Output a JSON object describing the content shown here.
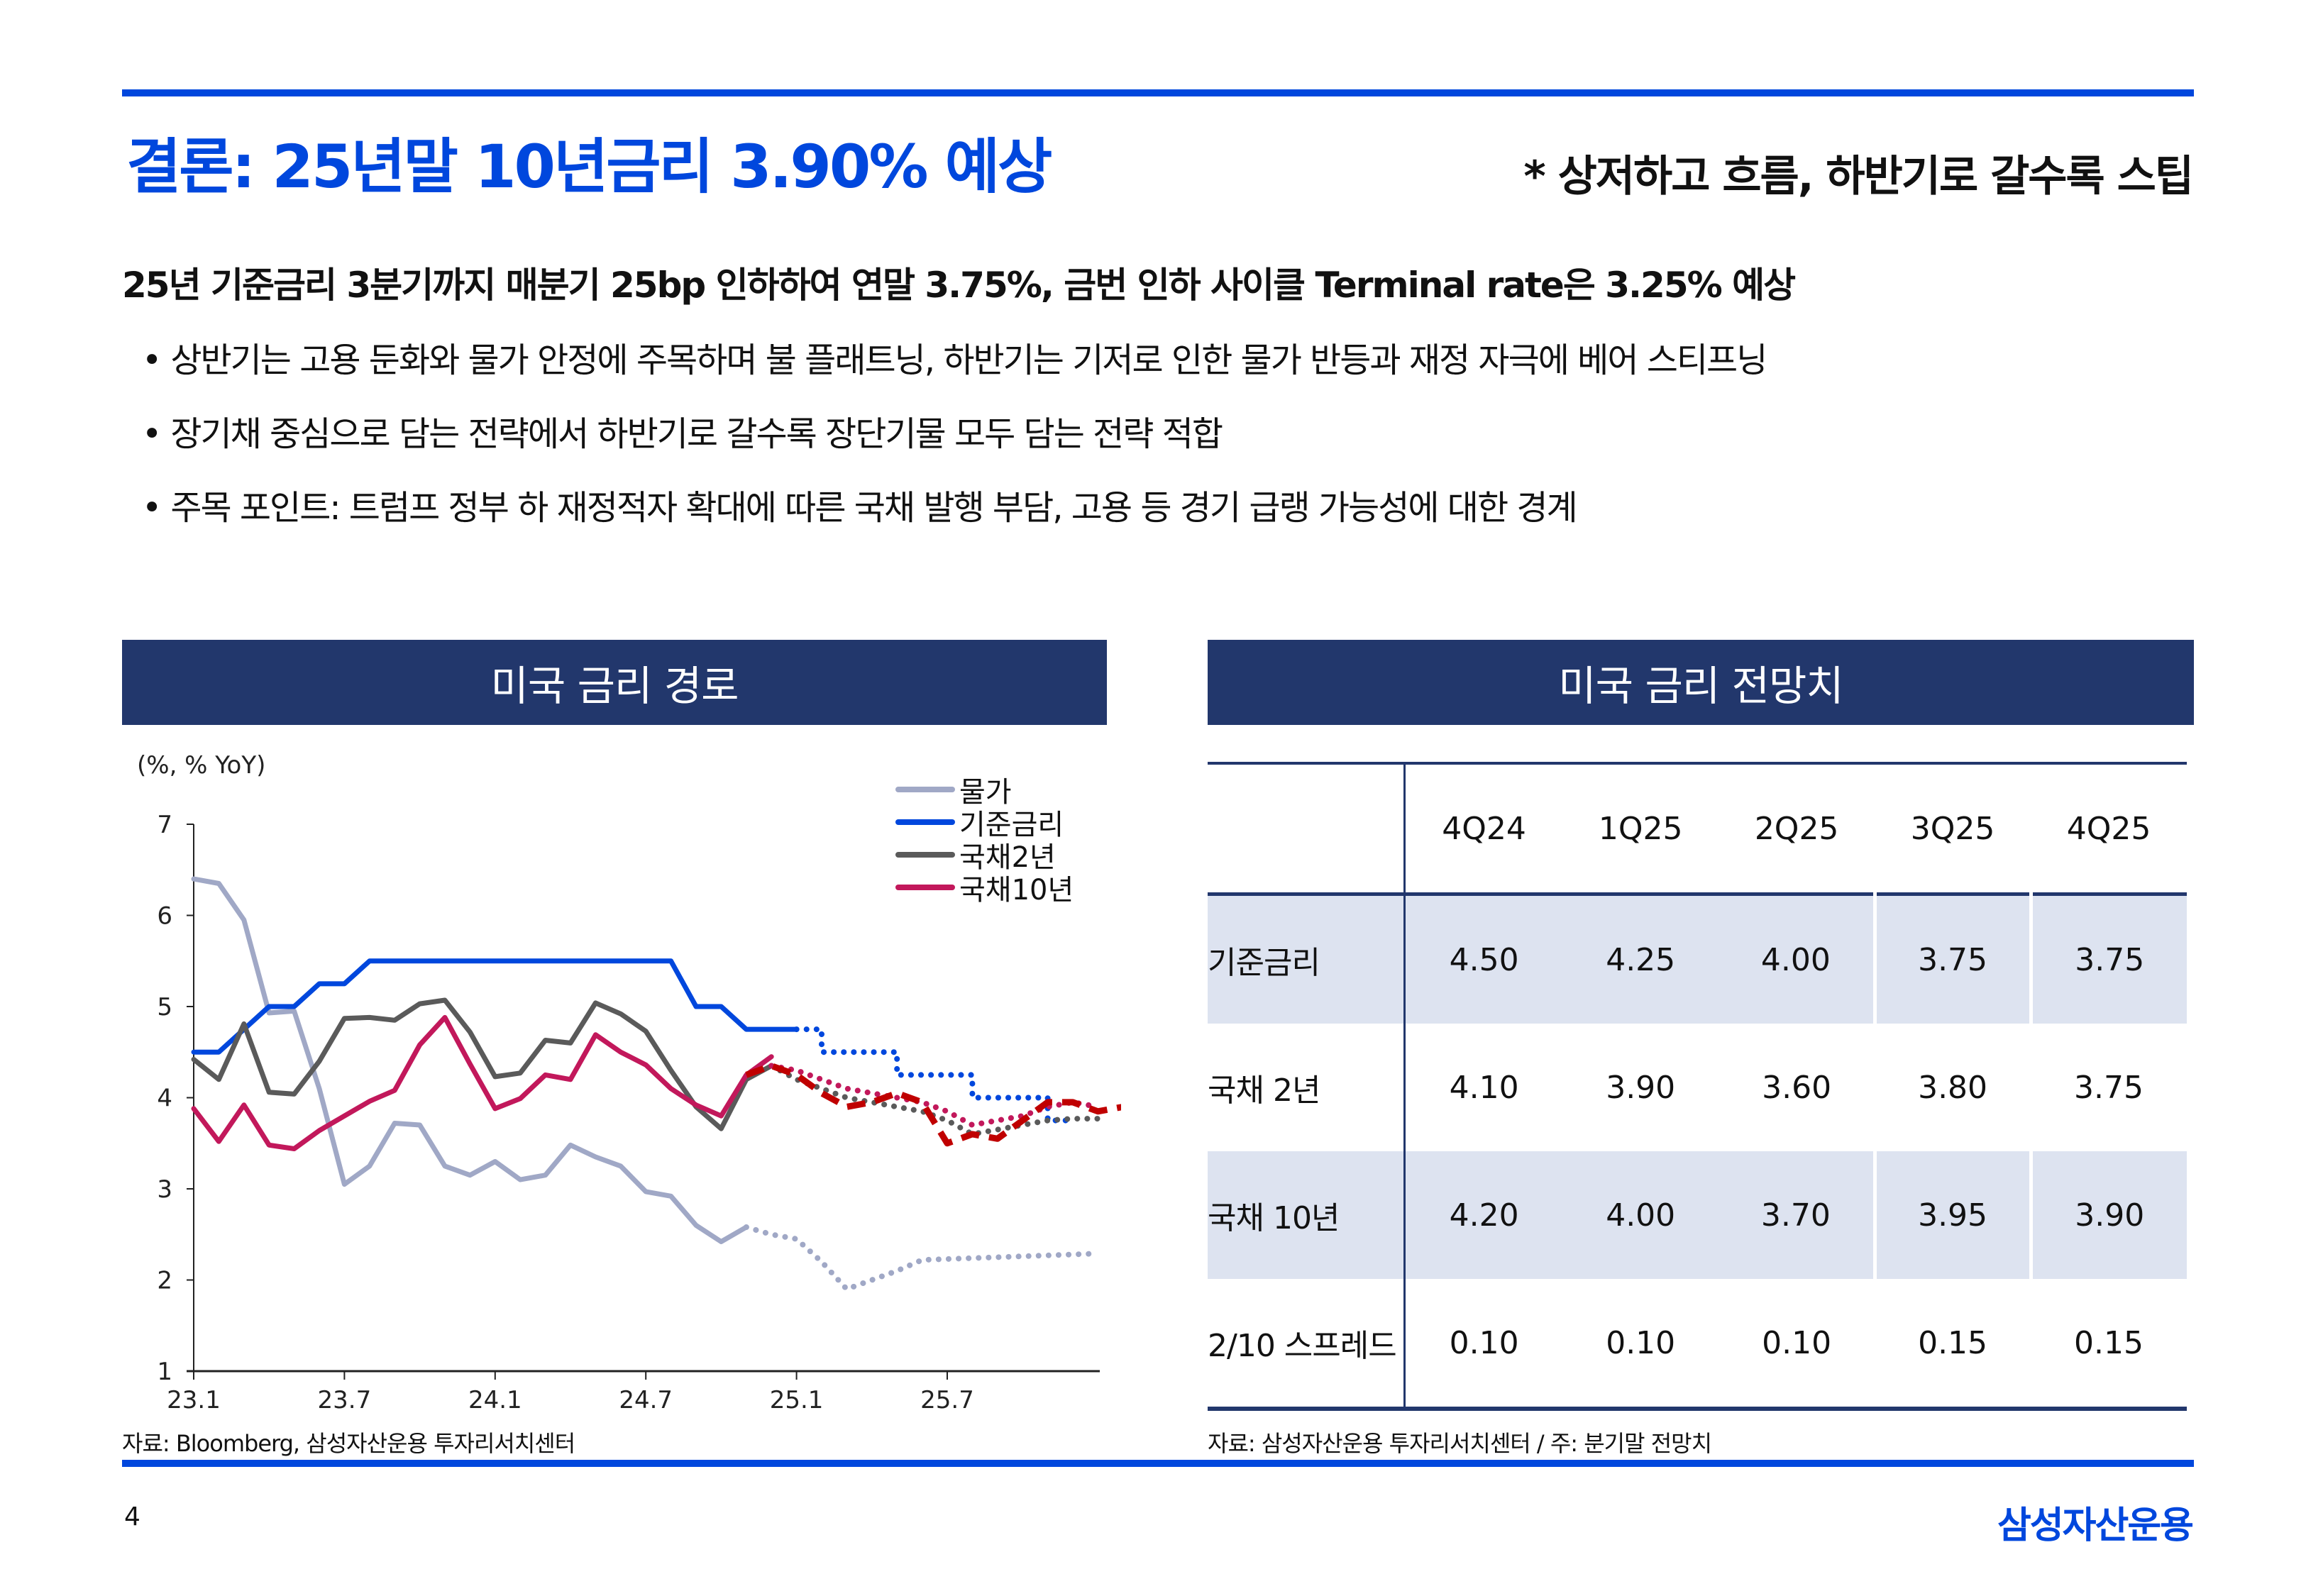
{
  "header": {
    "title": "결론: 25년말 10년금리 3.90% 예상",
    "subtitle": "* 상저하고 흐름, 하반기로 갈수록 스팁"
  },
  "body": {
    "lead": "25년 기준금리 3분기까지 매분기 25bp 인하하여 연말 3.75%, 금번 인하 사이클 Terminal rate은 3.25% 예상",
    "bullets": [
      "상반기는 고용 둔화와 물가 안정에 주목하며 불 플래트닝, 하반기는 기저로 인한 물가 반등과 재정 자극에 베어 스티프닝",
      "장기채 중심으로 담는 전략에서 하반기로 갈수록 장단기물 모두 담는 전략 적합",
      "주목 포인트: 트럼프 정부 하 재정적자 확대에 따른 국채 발행 부담, 고용 등 경기 급랭 가능성에 대한 경계"
    ]
  },
  "left_panel": {
    "title": "미국 금리 경로",
    "source": "자료: Bloomberg, 삼성자산운용 투자리서치센터"
  },
  "right_panel": {
    "title": "미국 금리 전망치",
    "source": "자료: 삼성자산운용 투자리서치센터 / 주: 분기말 전망치",
    "columns": [
      "4Q24",
      "1Q25",
      "2Q25",
      "3Q25",
      "4Q25"
    ],
    "rows": [
      {
        "label": "기준금리",
        "values": [
          "4.50",
          "4.25",
          "4.00",
          "3.75",
          "3.75"
        ],
        "shaded": true
      },
      {
        "label": "국채 2년",
        "values": [
          "4.10",
          "3.90",
          "3.60",
          "3.80",
          "3.75"
        ],
        "shaded": false
      },
      {
        "label": "국채 10년",
        "values": [
          "4.20",
          "4.00",
          "3.70",
          "3.95",
          "3.90"
        ],
        "shaded": true
      },
      {
        "label": "2/10 스프레드",
        "values": [
          "0.10",
          "0.10",
          "0.10",
          "0.15",
          "0.15"
        ],
        "shaded": false
      }
    ]
  },
  "footer": {
    "page": "4",
    "brand": "삼성자산운용"
  },
  "chart_data": {
    "type": "line",
    "title": "미국 금리 경로",
    "ylabel": "(%, % YoY)",
    "ylim": [
      1,
      7
    ],
    "yticks": [
      "1",
      "2",
      "3",
      "4",
      "5",
      "6",
      "7"
    ],
    "xticks": [
      "23.1",
      "23.7",
      "24.1",
      "24.7",
      "25.1",
      "25.7"
    ],
    "x_start": "2023-01",
    "x_step": "month",
    "legend": [
      "물가",
      "기준금리",
      "국채2년",
      "국채10년"
    ],
    "legend_position": "top-right",
    "grid": false,
    "colors": {
      "cpi": "#A0A8C6",
      "policy": "#0047DD",
      "ust2": "#5A5A5A",
      "ust10": "#C2185B",
      "ust10_alt": "#C00000"
    },
    "series": [
      {
        "name": "물가",
        "key": "cpi",
        "style": "solid",
        "values": [
          6.4,
          6.35,
          5.95,
          4.93,
          4.95,
          4.1,
          3.05,
          3.25,
          3.72,
          3.7,
          3.25,
          3.15,
          3.3,
          3.1,
          3.15,
          3.48,
          3.35,
          3.25,
          2.97,
          2.92,
          2.6,
          2.42,
          2.58
        ]
      },
      {
        "name": "물가 전망",
        "key": "cpi",
        "style": "dotted",
        "start_index": 22,
        "values": [
          2.58,
          2.5,
          2.45,
          2.2,
          1.9,
          2.0,
          2.1,
          2.22,
          2.23,
          2.24,
          2.25,
          2.26,
          2.27,
          2.28,
          2.29
        ]
      },
      {
        "name": "기준금리",
        "key": "policy",
        "style": "solid",
        "values": [
          4.5,
          4.5,
          4.75,
          5.0,
          5.0,
          5.25,
          5.25,
          5.5,
          5.5,
          5.5,
          5.5,
          5.5,
          5.5,
          5.5,
          5.5,
          5.5,
          5.5,
          5.5,
          5.5,
          5.5,
          5.0,
          5.0,
          4.75,
          4.75,
          4.75
        ]
      },
      {
        "name": "기준금리 전망",
        "key": "policy",
        "style": "dotted-step",
        "start_index": 24,
        "values": [
          4.75,
          4.5,
          4.5,
          4.5,
          4.25,
          4.25,
          4.25,
          4.0,
          4.0,
          4.0,
          3.75,
          3.75
        ]
      },
      {
        "name": "국채2년",
        "key": "ust2",
        "style": "solid",
        "values": [
          4.42,
          4.2,
          4.81,
          4.06,
          4.04,
          4.4,
          4.87,
          4.88,
          4.85,
          5.03,
          5.07,
          4.72,
          4.23,
          4.27,
          4.63,
          4.6,
          5.04,
          4.92,
          4.73,
          4.3,
          3.9,
          3.66,
          4.2,
          4.35
        ]
      },
      {
        "name": "국채2년 전망",
        "key": "ust2",
        "style": "dotted",
        "start_index": 23,
        "values": [
          4.35,
          4.2,
          4.1,
          4.0,
          3.95,
          3.9,
          3.85,
          3.75,
          3.6,
          3.65,
          3.7,
          3.75,
          3.77,
          3.77
        ]
      },
      {
        "name": "국채10년",
        "key": "ust10",
        "style": "solid",
        "values": [
          3.88,
          3.52,
          3.92,
          3.48,
          3.44,
          3.64,
          3.8,
          3.96,
          4.08,
          4.58,
          4.88,
          4.37,
          3.88,
          3.99,
          4.25,
          4.2,
          4.69,
          4.5,
          4.36,
          4.1,
          3.92,
          3.8,
          4.25,
          4.45
        ]
      },
      {
        "name": "국채10년 전망",
        "key": "ust10",
        "style": "dotted",
        "start_index": 23,
        "values": [
          4.35,
          4.3,
          4.2,
          4.1,
          4.05,
          4.0,
          3.95,
          3.85,
          3.7,
          3.75,
          3.8,
          3.9,
          3.95,
          3.9
        ]
      },
      {
        "name": "국채10년 전망 (대안 경로)",
        "key": "ust10_alt",
        "style": "dashed",
        "start_index": 22,
        "values": [
          4.25,
          4.35,
          4.25,
          4.05,
          3.9,
          3.95,
          4.05,
          3.95,
          3.5,
          3.6,
          3.55,
          3.75,
          3.95,
          3.95,
          3.85,
          3.9
        ]
      }
    ]
  }
}
